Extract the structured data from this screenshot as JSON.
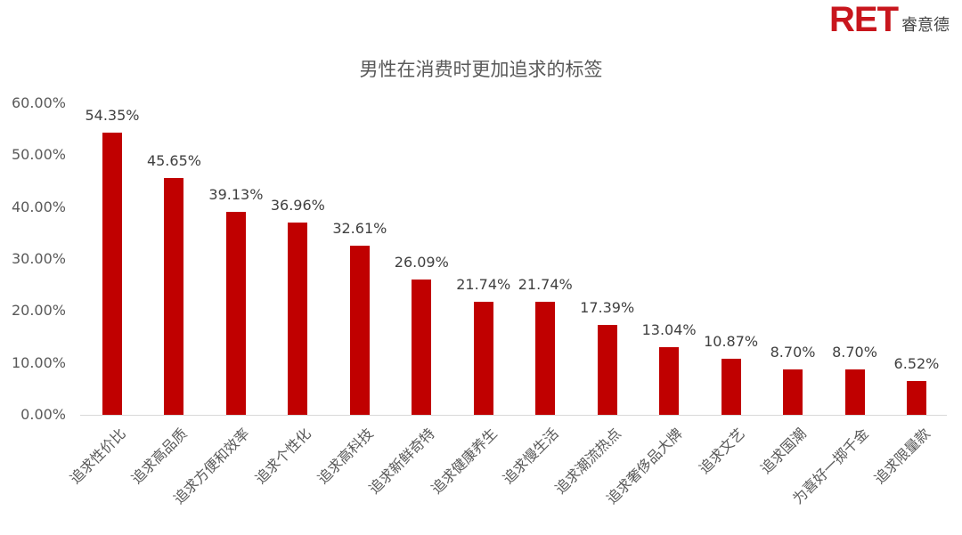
{
  "logo": {
    "mark": "RET",
    "text": "睿意德"
  },
  "chart_data": {
    "type": "bar",
    "title": "男性在消费时更加追求的标签",
    "xlabel": "",
    "ylabel": "",
    "ylim": [
      0,
      60
    ],
    "yticks": [
      "0.00%",
      "10.00%",
      "20.00%",
      "30.00%",
      "40.00%",
      "50.00%",
      "60.00%"
    ],
    "grid": false,
    "legend": "none",
    "bar_color": "#c00000",
    "categories": [
      "追求性价比",
      "追求高品质",
      "追求方便和效率",
      "追求个性化",
      "追求高科技",
      "追求新鲜奇特",
      "追求健康养生",
      "追求慢生活",
      "追求潮流热点",
      "追求奢侈品大牌",
      "追求文艺",
      "追求国潮",
      "为喜好一掷千金",
      "追求限量款"
    ],
    "values": [
      54.35,
      45.65,
      39.13,
      36.96,
      32.61,
      26.09,
      21.74,
      21.74,
      17.39,
      13.04,
      10.87,
      8.7,
      8.7,
      6.52
    ],
    "value_labels": [
      "54.35%",
      "45.65%",
      "39.13%",
      "36.96%",
      "32.61%",
      "26.09%",
      "21.74%",
      "21.74%",
      "17.39%",
      "13.04%",
      "10.87%",
      "8.70%",
      "8.70%",
      "6.52%"
    ]
  }
}
